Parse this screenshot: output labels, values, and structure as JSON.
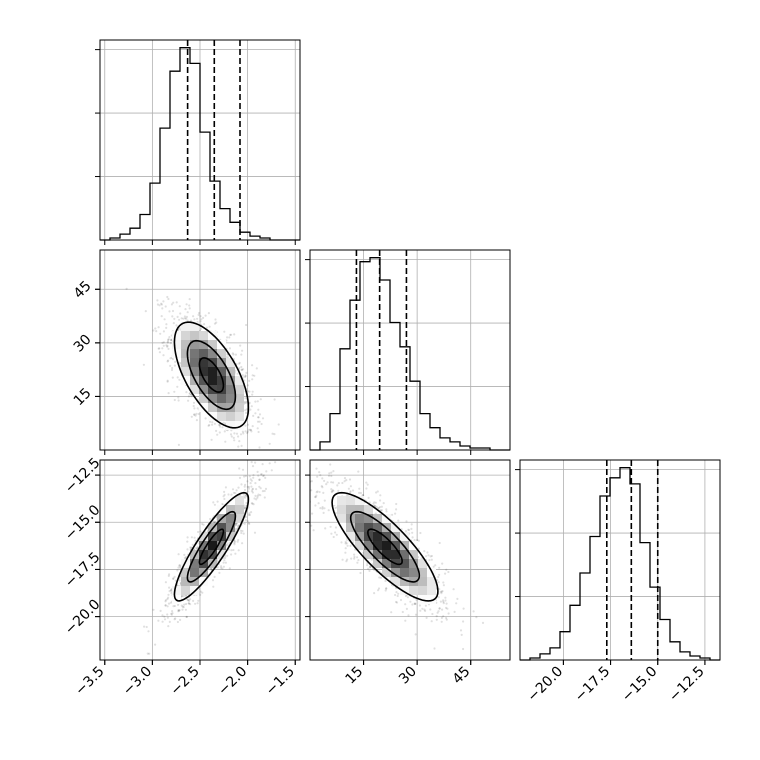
{
  "chart_data": {
    "type": "corner",
    "parameters": [
      {
        "ticks": [
          -3.5,
          -3.0,
          -2.5,
          -2.0,
          -1.5
        ],
        "tick_labels": [
          "−3.5",
          "−3.0",
          "−2.5",
          "−2.0",
          "−1.5"
        ],
        "range": [
          -3.55,
          -1.45
        ]
      },
      {
        "ticks": [
          15,
          30,
          45
        ],
        "tick_labels": [
          "15",
          "30",
          "45"
        ],
        "range": [
          0,
          56
        ]
      },
      {
        "ticks": [
          -20.0,
          -17.5,
          -15.0,
          -12.5
        ],
        "tick_labels": [
          "−20.0",
          "−17.5",
          "−15.0",
          "−12.5"
        ],
        "range": [
          -22.3,
          -11.7
        ]
      }
    ],
    "histograms": [
      {
        "parameter": 0,
        "bin_start": -3.55,
        "bin_width": 0.105,
        "counts": [
          0,
          0.01,
          0.03,
          0.06,
          0.13,
          0.29,
          0.57,
          0.86,
          0.98,
          0.9,
          0.55,
          0.3,
          0.16,
          0.09,
          0.04,
          0.02,
          0.01,
          0,
          0,
          0
        ],
        "quantiles": [
          -2.63,
          -2.35,
          -2.08
        ]
      },
      {
        "parameter": 1,
        "bin_start": 0,
        "bin_width": 2.8,
        "counts": [
          0,
          0.04,
          0.18,
          0.5,
          0.74,
          0.93,
          0.95,
          0.84,
          0.63,
          0.51,
          0.34,
          0.18,
          0.11,
          0.06,
          0.04,
          0.02,
          0.01,
          0.01,
          0,
          0
        ],
        "quantiles": [
          13.0,
          19.5,
          27.0
        ]
      },
      {
        "parameter": 2,
        "bin_start": -22.3,
        "bin_width": 0.53,
        "counts": [
          0,
          0.01,
          0.03,
          0.06,
          0.14,
          0.27,
          0.43,
          0.61,
          0.81,
          0.9,
          0.95,
          0.87,
          0.58,
          0.36,
          0.2,
          0.09,
          0.04,
          0.02,
          0.01,
          0
        ],
        "quantiles": [
          -17.7,
          -16.4,
          -15.0
        ]
      }
    ],
    "scatter": [
      {
        "x_param": 0,
        "y_param": 1,
        "mean": [
          -2.38,
          21
        ],
        "sd": [
          0.21,
          8.0
        ],
        "rho": -0.62,
        "contours": [
          {
            "scale": 0.6,
            "width": 1.3
          },
          {
            "scale": 1.2,
            "width": 1.6
          },
          {
            "scale": 1.85,
            "width": 1.7
          }
        ]
      },
      {
        "x_param": 0,
        "y_param": 2,
        "mean": [
          -2.38,
          -16.3
        ],
        "sd": [
          0.21,
          1.55
        ],
        "rho": 0.88,
        "contours": [
          {
            "scale": 0.6,
            "width": 1.3
          },
          {
            "scale": 1.2,
            "width": 1.6
          },
          {
            "scale": 1.85,
            "width": 1.7
          }
        ]
      },
      {
        "x_param": 1,
        "y_param": 2,
        "mean": [
          21,
          -16.3
        ],
        "sd": [
          8.0,
          1.55
        ],
        "rho": -0.82,
        "contours": [
          {
            "scale": 0.6,
            "width": 1.3
          },
          {
            "scale": 1.2,
            "width": 1.6
          },
          {
            "scale": 1.85,
            "width": 1.7
          }
        ]
      }
    ],
    "grid": true,
    "colors": {
      "line": "#000000",
      "grid": "#b0b0b0",
      "points": "#000000"
    }
  }
}
